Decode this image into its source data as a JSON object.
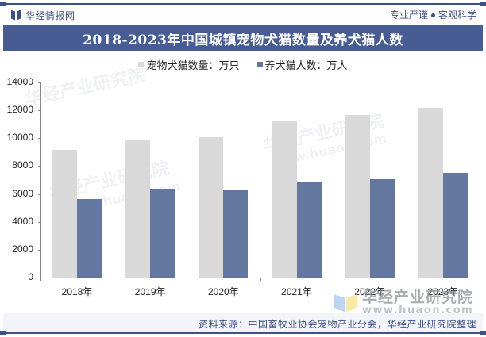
{
  "header": {
    "brand_name": "华经情报网",
    "slogan_left": "专业严谨",
    "slogan_right": "客观科学",
    "title": "2018-2023年中国城镇宠物犬猫数量及养犬猫人数"
  },
  "legend": [
    {
      "label": "宠物犬猫数量：万只",
      "color": "#d9d9d9"
    },
    {
      "label": "养犬猫人数：万人",
      "color": "#64779f"
    }
  ],
  "watermark": {
    "cn": "华经产业研究院",
    "url": "www.huaon.com"
  },
  "footer": {
    "source": "资料来源：中国畜牧业协会宠物产业分会，华经产业研究院整理"
  },
  "colors": {
    "brand": "#3d5283",
    "title_bar": "#475c93",
    "series_pets": "#d9d9d9",
    "series_owners": "#64779f"
  },
  "chart_data": {
    "type": "bar",
    "title": "2018-2023年中国城镇宠物犬猫数量及养犬猫人数",
    "categories": [
      "2018年",
      "2019年",
      "2020年",
      "2021年",
      "2022年",
      "2023年"
    ],
    "series": [
      {
        "name": "宠物犬猫数量：万只",
        "color": "#d9d9d9",
        "values": [
          9149,
          9915,
          10084,
          11235,
          11655,
          12155
        ]
      },
      {
        "name": "养犬猫人数：万人",
        "color": "#64779f",
        "values": [
          5648,
          6355,
          6294,
          6844,
          7043,
          7510
        ]
      }
    ],
    "xlabel": "",
    "ylabel": "",
    "ylim": [
      0,
      14000
    ],
    "yticks": [
      0,
      2000,
      4000,
      6000,
      8000,
      10000,
      12000,
      14000
    ],
    "grid": false,
    "legend_position": "top"
  }
}
